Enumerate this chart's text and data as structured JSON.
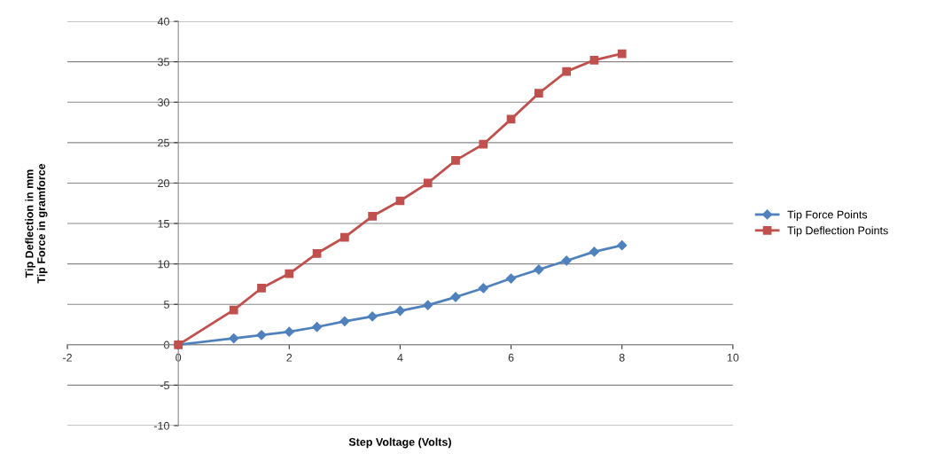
{
  "chart_data": {
    "type": "line",
    "xlabel": "Step Voltage (Volts)",
    "ylabel": "Tip Deflection in mm\nTip Force in gramforce",
    "xlim": [
      -2,
      10
    ],
    "xticks": [
      -2,
      0,
      2,
      4,
      6,
      8,
      10
    ],
    "ylim": [
      -10,
      40
    ],
    "yticks": [
      -10,
      -5,
      0,
      5,
      10,
      15,
      20,
      25,
      30,
      35,
      40
    ],
    "grid": "y",
    "legend": "right",
    "line_style": "solid",
    "series": [
      {
        "name": "Tip Force Points",
        "color": "#4f81bd",
        "marker": "diamond",
        "x": [
          0,
          1,
          1.5,
          2,
          2.5,
          3,
          3.5,
          4,
          4.5,
          5,
          5.5,
          6,
          6.5,
          7,
          7.5,
          8
        ],
        "values": [
          0,
          0.8,
          1.2,
          1.6,
          2.2,
          2.9,
          3.5,
          4.2,
          4.9,
          5.9,
          7.0,
          8.2,
          9.3,
          10.4,
          11.5,
          12.3
        ]
      },
      {
        "name": "Tip Deflection Points",
        "color": "#c0504d",
        "marker": "square",
        "x": [
          0,
          1,
          1.5,
          2,
          2.5,
          3,
          3.5,
          4,
          4.5,
          5,
          5.5,
          6,
          6.5,
          7,
          7.5,
          8
        ],
        "values": [
          0,
          4.3,
          7.0,
          8.8,
          11.3,
          13.3,
          15.9,
          17.8,
          20.0,
          22.8,
          24.8,
          27.9,
          31.1,
          33.8,
          35.2,
          36.0
        ]
      }
    ]
  }
}
